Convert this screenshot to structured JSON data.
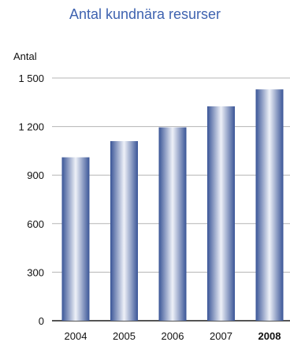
{
  "chart_data": {
    "type": "bar",
    "title": "Antal kundnära resurser",
    "ylabel": "Antal",
    "xlabel": "",
    "categories": [
      "2004",
      "2005",
      "2006",
      "2007",
      "2008"
    ],
    "highlight_category": "2008",
    "values": [
      1010,
      1110,
      1195,
      1325,
      1430
    ],
    "ylim": [
      0,
      1500
    ],
    "yticks": [
      0,
      300,
      600,
      900,
      1200,
      1500
    ],
    "ytick_labels": [
      "0",
      "300",
      "600",
      "900",
      "1 200",
      "1 500"
    ],
    "grid": true,
    "legend": "none",
    "colors": {
      "title": "#3f63b0",
      "bar_dark": "#3a5597",
      "bar_light": "#eef1f8",
      "grid": "#b5b5b5"
    }
  }
}
